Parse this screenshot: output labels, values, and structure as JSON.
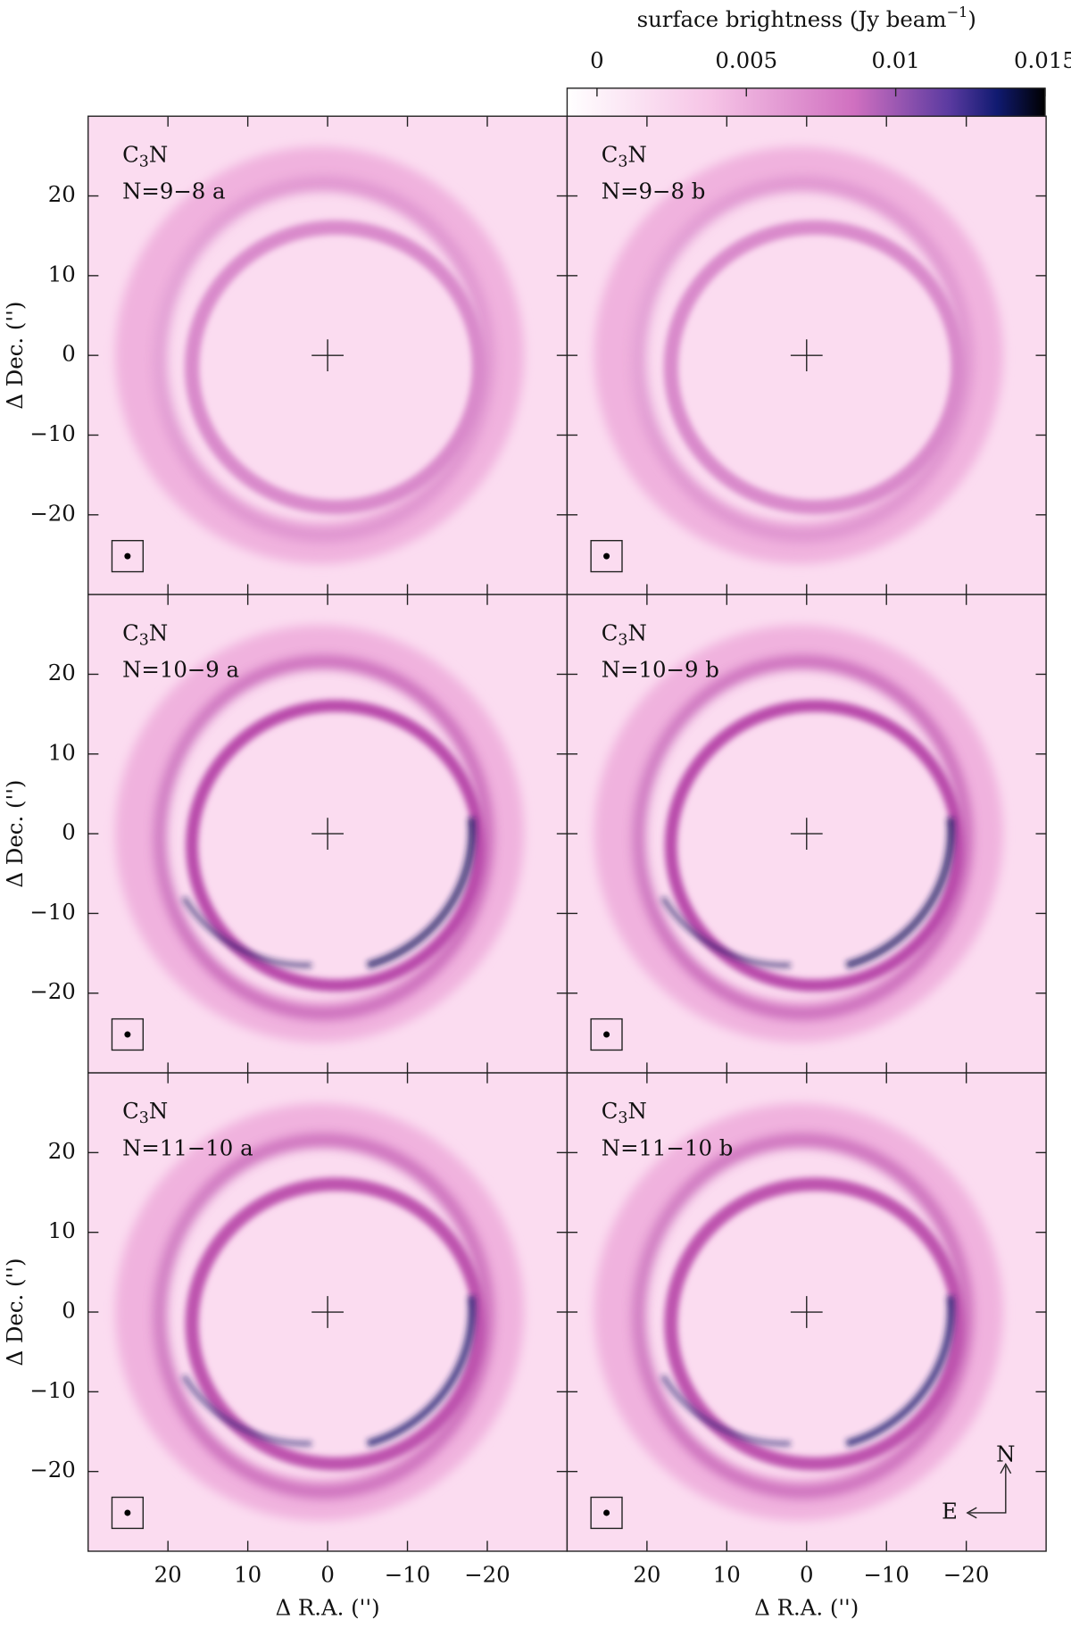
{
  "colorbar": {
    "label": "surface brightness (Jy beam",
    "label_sup": "−1",
    "label_end": ")",
    "lim": [
      -0.001,
      0.015
    ],
    "ticks": [
      0,
      0.005,
      0.01,
      0.015
    ]
  },
  "compass": {
    "north": "N",
    "east": "E"
  },
  "chart_data": [
    {
      "type": "image",
      "molecule": {
        "base": "C",
        "sub": "3",
        "end": "N"
      },
      "transition": "N=9−8 a",
      "xlim": [
        30,
        -30
      ],
      "ylim": [
        -30,
        30
      ],
      "xticks": [
        20,
        10,
        0,
        -10,
        -20
      ],
      "yticks": [
        {
          "value": -20,
          "label": "−20"
        },
        {
          "value": -10,
          "label": "−10"
        },
        0,
        10,
        20
      ],
      "ylabel": "Δ Dec. ('')"
    },
    {
      "type": "image",
      "molecule": {
        "base": "C",
        "sub": "3",
        "end": "N"
      },
      "transition": "N=9−8 b",
      "xlim": [
        30,
        -30
      ],
      "ylim": [
        -30,
        30
      ],
      "xticks": [
        20,
        10,
        0,
        -10,
        -20
      ],
      "yticks": [
        -20,
        -10,
        0,
        10,
        20
      ]
    },
    {
      "type": "image",
      "molecule": {
        "base": "C",
        "sub": "3",
        "end": "N"
      },
      "transition": "N=10−9 a",
      "xlim": [
        30,
        -30
      ],
      "ylim": [
        -30,
        30
      ],
      "xticks": [
        20,
        10,
        0,
        -10,
        -20
      ],
      "yticks": [
        {
          "value": -20,
          "label": "−20"
        },
        {
          "value": -10,
          "label": "−10"
        },
        0,
        10,
        20
      ],
      "ylabel": "Δ Dec. ('')"
    },
    {
      "type": "image",
      "molecule": {
        "base": "C",
        "sub": "3",
        "end": "N"
      },
      "transition": "N=10−9 b",
      "xlim": [
        30,
        -30
      ],
      "ylim": [
        -30,
        30
      ],
      "xticks": [
        20,
        10,
        0,
        -10,
        -20
      ],
      "yticks": [
        -20,
        -10,
        0,
        10,
        20
      ]
    },
    {
      "type": "image",
      "molecule": {
        "base": "C",
        "sub": "3",
        "end": "N"
      },
      "transition": "N=11−10 a",
      "xlim": [
        30,
        -30
      ],
      "ylim": [
        -30,
        30
      ],
      "xticks": [
        20,
        10,
        0,
        {
          "value": -10,
          "label": "−10"
        },
        {
          "value": -20,
          "label": "−20"
        }
      ],
      "yticks": [
        {
          "value": -20,
          "label": "−20"
        },
        {
          "value": -10,
          "label": "−10"
        },
        0,
        10,
        20
      ],
      "xlabel": "Δ R.A. ('')",
      "ylabel": "Δ Dec. ('')"
    },
    {
      "type": "image",
      "molecule": {
        "base": "C",
        "sub": "3",
        "end": "N"
      },
      "transition": "N=11−10 b",
      "xlim": [
        30,
        -30
      ],
      "ylim": [
        -30,
        30
      ],
      "xticks": [
        20,
        10,
        0,
        {
          "value": -10,
          "label": "−10"
        },
        {
          "value": -20,
          "label": "−20"
        }
      ],
      "yticks": [
        -20,
        -10,
        0,
        10,
        20
      ],
      "xlabel": "Δ R.A. ('')"
    }
  ]
}
